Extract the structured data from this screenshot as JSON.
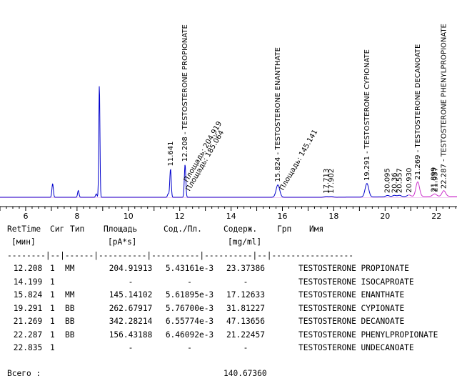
{
  "chart_data": {
    "type": "line",
    "x_ticks": [
      6,
      8,
      10,
      12,
      14,
      16,
      18,
      20,
      22
    ],
    "xlim": [
      5,
      22.8
    ],
    "series": [
      {
        "name": "",
        "color": "#0000cc"
      },
      {
        "name": "",
        "color": "#cc33cc"
      }
    ],
    "peaks": [
      {
        "rt": 7.05,
        "height": 0.12
      },
      {
        "rt": 8.05,
        "height": 0.06
      },
      {
        "rt": 8.75,
        "height": 0.03
      },
      {
        "rt": 8.87,
        "height": 1.0
      },
      {
        "rt": 11.55,
        "height": 0.03
      },
      {
        "rt": 11.641,
        "height": 0.25
      },
      {
        "rt": 12.208,
        "height": 0.29
      },
      {
        "rt": 15.824,
        "height": 0.11
      },
      {
        "rt": 17.713,
        "height": 0.008
      },
      {
        "rt": 17.902,
        "height": 0.008
      },
      {
        "rt": 19.291,
        "height": 0.12
      },
      {
        "rt": 20.095,
        "height": 0.012
      },
      {
        "rt": 20.36,
        "height": 0.012
      },
      {
        "rt": 20.557,
        "height": 0.012
      },
      {
        "rt": 20.93,
        "height": 0.015
      },
      {
        "rt": 21.269,
        "height": 0.13
      },
      {
        "rt": 21.899,
        "height": 0.012
      },
      {
        "rt": 21.957,
        "height": 0.012
      },
      {
        "rt": 22.287,
        "height": 0.05
      }
    ],
    "peak_labels": [
      {
        "rt": 11.641,
        "text": "11.641"
      },
      {
        "rt": 12.208,
        "text": "12.208 -  TESTOSTERONE PROPIONATE"
      },
      {
        "rt": 12.22,
        "text": "Площадь: 204.919"
      },
      {
        "rt": 12.3,
        "text": "Площадь: 185.064"
      },
      {
        "rt": 15.824,
        "text": "15.824 -  TESTOSTERONE ENANTHATE"
      },
      {
        "rt": 15.95,
        "text": "Площадь: 145.141"
      },
      {
        "rt": 17.713,
        "text": "17.713"
      },
      {
        "rt": 17.902,
        "text": "17.902"
      },
      {
        "rt": 19.291,
        "text": "19.291 -  TESTOSTERONE CYPIONATE"
      },
      {
        "rt": 20.095,
        "text": "20.095"
      },
      {
        "rt": 20.36,
        "text": "20.36"
      },
      {
        "rt": 20.557,
        "text": "20.557"
      },
      {
        "rt": 20.93,
        "text": "20.930"
      },
      {
        "rt": 21.269,
        "text": "21.269 -  TESTOSTERONE DECANOATE"
      },
      {
        "rt": 21.899,
        "text": "21.899"
      },
      {
        "rt": 21.957,
        "text": "21.957"
      },
      {
        "rt": 22.287,
        "text": "22.287 -  TESTOSTERONE PHENYLPROPIONATE"
      }
    ]
  },
  "report": {
    "headers": {
      "rettime": "RetTime",
      "sig": "Сиг",
      "type": "Тип",
      "area": "Площадь",
      "ratio": "Сод./Пл.",
      "content": "Содерж.",
      "grp": "Грп",
      "name": "Имя"
    },
    "units": {
      "rettime": "[мин]",
      "area": "[pA*s]",
      "content": "[mg/ml]"
    },
    "separator": "--------|--|------|----------|----------|----------|--|-----------------",
    "rows": [
      {
        "rettime": "12.208",
        "sig": "1",
        "type": "MM",
        "area": "204.91913",
        "ratio": "5.43161e-3",
        "content": "23.37386",
        "name": "TESTOSTERONE PROPIONATE"
      },
      {
        "rettime": "14.199",
        "sig": "1",
        "type": "",
        "area": "-",
        "ratio": "-",
        "content": "-",
        "name": "TESTOSTERONE ISOCAPROATE"
      },
      {
        "rettime": "15.824",
        "sig": "1",
        "type": "MM",
        "area": "145.14102",
        "ratio": "5.61895e-3",
        "content": "17.12633",
        "name": "TESTOSTERONE ENANTHATE"
      },
      {
        "rettime": "19.291",
        "sig": "1",
        "type": "BB",
        "area": "262.67917",
        "ratio": "5.76700e-3",
        "content": "31.81227",
        "name": "TESTOSTERONE CYPIONATE"
      },
      {
        "rettime": "21.269",
        "sig": "1",
        "type": "BB",
        "area": "342.28214",
        "ratio": "6.55774e-3",
        "content": "47.13656",
        "name": "TESTOSTERONE DECANOATE"
      },
      {
        "rettime": "22.287",
        "sig": "1",
        "type": "BB",
        "area": "156.43188",
        "ratio": "6.46092e-3",
        "content": "21.22457",
        "name": "TESTOSTERONE PHENYLPROPIONATE"
      },
      {
        "rettime": "22.835",
        "sig": "1",
        "type": "",
        "area": "-",
        "ratio": "-",
        "content": "-",
        "name": "TESTOSTERONE UNDECANOATE"
      }
    ],
    "total_label": "Всего :",
    "total_value": "140.67360"
  }
}
